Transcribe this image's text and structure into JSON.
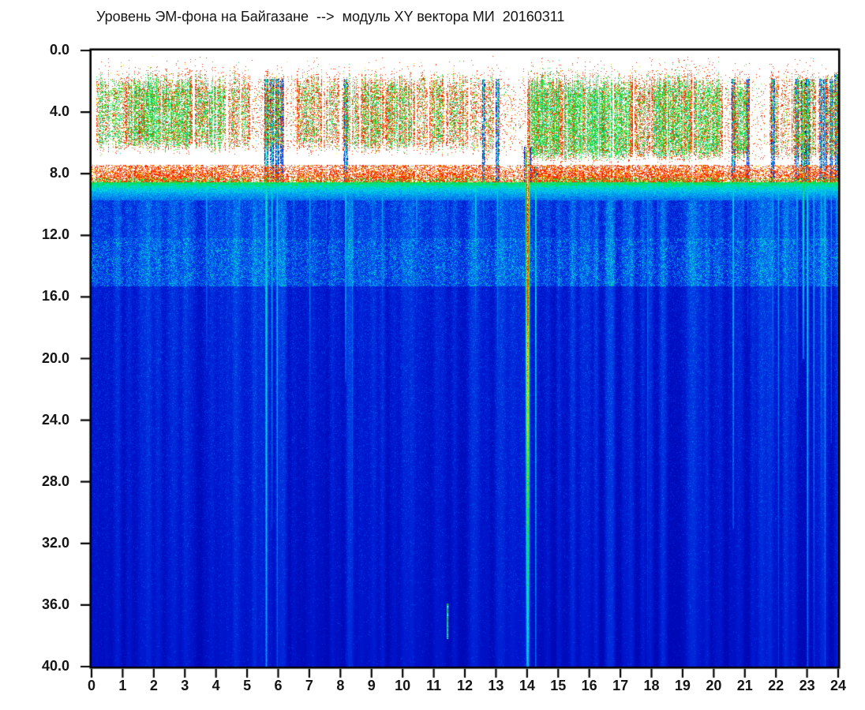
{
  "header": {
    "title": "Уровень ЭМ-фона на Байгазане  -->  модуль XY вектора МИ  20160311"
  },
  "chart_data": {
    "type": "heatmap",
    "subtype": "spectrogram",
    "title": "Уровень ЭМ-фона на Байгазане  -->  модуль XY вектора МИ  20160311",
    "date_shown_in_title": "20160311",
    "x_axis": {
      "min": 0,
      "max": 24,
      "tick_step": 1,
      "tick_labels": [
        "0",
        "1",
        "2",
        "3",
        "4",
        "5",
        "6",
        "7",
        "8",
        "9",
        "10",
        "11",
        "12",
        "13",
        "14",
        "15",
        "16",
        "17",
        "18",
        "19",
        "20",
        "21",
        "22",
        "23",
        "24"
      ]
    },
    "y_axis": {
      "min": 0,
      "max": 40,
      "tick_step": 4,
      "inverted": true,
      "tick_labels": [
        "0.0",
        "4.0",
        "8.0",
        "12.0",
        "16.0",
        "20.0",
        "24.0",
        "28.0",
        "32.0",
        "36.0",
        "40.0"
      ]
    },
    "grid": false,
    "legend": "none",
    "colormap": {
      "name": "jet-like",
      "below_min_color": "#FFFFFF",
      "stops": [
        [
          0.0,
          "#FFFFFF"
        ],
        [
          0.1,
          "#FFFFFF"
        ],
        [
          0.17,
          "#0000A8"
        ],
        [
          0.26,
          "#0018D0"
        ],
        [
          0.34,
          "#0040E8"
        ],
        [
          0.46,
          "#00A0F0"
        ],
        [
          0.54,
          "#00E0E0"
        ],
        [
          0.63,
          "#00DC48"
        ],
        [
          0.71,
          "#8CE800"
        ],
        [
          0.78,
          "#FFE000"
        ],
        [
          0.85,
          "#FF4000"
        ],
        [
          0.92,
          "#F01800"
        ],
        [
          0.965,
          "#FF9C9C"
        ],
        [
          1.0,
          "#FFFFFF"
        ]
      ]
    },
    "regions": [
      {
        "name": "blank-top",
        "y": [
          0.0,
          1.1
        ],
        "value": 0.0,
        "note": "white, no signal"
      },
      {
        "name": "daytime-activity-patches",
        "y": [
          1.1,
          7.45
        ],
        "note": "intermittent green-core patches with red speckle fringe"
      },
      {
        "name": "red-boundary-band",
        "y": [
          7.45,
          8.55
        ],
        "note": "dense red/yellow speckle band across full width"
      },
      {
        "name": "green-cyan-transition",
        "y": [
          8.55,
          9.75
        ],
        "value_from": 0.63,
        "value_to": 0.4
      },
      {
        "name": "bright-blue-band",
        "y": [
          9.75,
          12.2
        ],
        "base_value": 0.315,
        "speckle": "cyan, moderate"
      },
      {
        "name": "cyan-speckle-band",
        "y": [
          12.2,
          15.3
        ],
        "base_value": 0.32,
        "speckle": "cyan, dense"
      },
      {
        "name": "deep-blue",
        "y": [
          15.3,
          40.0
        ],
        "base_value_from": 0.27,
        "base_value_to": 0.235,
        "speckle": "sparse, fading with depth"
      }
    ],
    "activity_patches": [
      [
        0.15,
        1.1,
        0.55,
        0.65
      ],
      [
        1.1,
        3.25,
        0.88,
        0.7
      ],
      [
        3.3,
        4.35,
        0.75,
        0.6
      ],
      [
        4.4,
        5.1,
        0.6,
        0.5
      ],
      [
        5.15,
        5.55,
        0.15,
        0.3
      ],
      [
        5.55,
        6.2,
        0.7,
        0.5
      ],
      [
        6.25,
        6.6,
        0.2,
        0.3
      ],
      [
        6.6,
        7.4,
        0.65,
        0.5
      ],
      [
        7.45,
        8.0,
        0.55,
        0.45
      ],
      [
        8.05,
        8.6,
        0.65,
        0.5
      ],
      [
        8.65,
        9.4,
        0.75,
        0.55
      ],
      [
        9.45,
        10.4,
        0.8,
        0.55
      ],
      [
        10.45,
        10.8,
        0.45,
        0.4
      ],
      [
        10.85,
        11.35,
        0.7,
        0.5
      ],
      [
        11.4,
        12.1,
        0.6,
        0.45
      ],
      [
        12.15,
        12.55,
        0.35,
        0.35
      ],
      [
        12.6,
        12.95,
        0.5,
        0.4
      ],
      [
        13.0,
        13.95,
        0.12,
        0.2
      ],
      [
        14.0,
        15.1,
        0.95,
        0.75
      ],
      [
        15.1,
        17.4,
        0.92,
        0.78
      ],
      [
        17.45,
        17.95,
        0.6,
        0.5
      ],
      [
        18.0,
        19.3,
        0.85,
        0.72
      ],
      [
        19.35,
        20.3,
        0.82,
        0.7
      ],
      [
        20.35,
        20.55,
        0.2,
        0.3
      ],
      [
        20.6,
        21.15,
        0.8,
        0.65
      ],
      [
        21.2,
        21.75,
        0.1,
        0.2
      ],
      [
        21.8,
        22.1,
        0.65,
        0.55
      ],
      [
        22.15,
        22.45,
        0.3,
        0.3
      ],
      [
        22.5,
        23.3,
        0.7,
        0.55
      ],
      [
        23.35,
        23.55,
        0.25,
        0.3
      ],
      [
        23.6,
        24.0,
        0.7,
        0.55
      ]
    ],
    "streaks": [
      [
        3.7,
        8.6,
        20.5,
        0.5,
        0.055,
        0.4
      ],
      [
        4.35,
        8.6,
        15,
        0.45,
        0.045,
        0.4
      ],
      [
        4.75,
        8.6,
        17.5,
        0.47,
        0.05,
        0.4
      ],
      [
        5.62,
        1.8,
        40,
        0.7,
        0.05,
        0.35
      ],
      [
        5.8,
        1.8,
        31,
        0.6,
        0.045,
        0.45
      ],
      [
        5.97,
        1.8,
        40,
        0.58,
        0.05,
        0.4
      ],
      [
        6.12,
        1.8,
        24,
        0.52,
        0.04,
        0.45
      ],
      [
        6.5,
        8.6,
        15.5,
        0.45,
        0.04,
        0.4
      ],
      [
        7.02,
        8.6,
        27.5,
        0.48,
        0.05,
        0.45
      ],
      [
        7.55,
        8.6,
        14.5,
        0.45,
        0.04,
        0.4
      ],
      [
        8.17,
        1.8,
        21.5,
        0.64,
        0.05,
        0.42
      ],
      [
        8.38,
        8.6,
        40,
        0.46,
        0.04,
        0.42
      ],
      [
        9.05,
        8.6,
        14.5,
        0.45,
        0.045,
        0.4
      ],
      [
        9.35,
        8.6,
        18.5,
        0.5,
        0.04,
        0.42
      ],
      [
        10.45,
        8.6,
        17.5,
        0.5,
        0.05,
        0.42
      ],
      [
        10.95,
        8.6,
        13.5,
        0.44,
        0.04,
        0.4
      ],
      [
        11.45,
        8.6,
        15,
        0.43,
        0.04,
        0.4
      ],
      [
        11.45,
        35.9,
        38.2,
        0.97,
        0.03,
        0.12
      ],
      [
        12.35,
        8.6,
        19.5,
        0.55,
        0.05,
        0.45
      ],
      [
        12.6,
        1.8,
        15,
        0.55,
        0.04,
        0.4
      ],
      [
        13.05,
        1.8,
        19.5,
        0.62,
        0.045,
        0.45
      ],
      [
        13.35,
        8.6,
        13.5,
        0.45,
        0.04,
        0.4
      ],
      [
        14.02,
        6.2,
        40,
        1.04,
        0.085,
        0.52
      ],
      [
        14.28,
        7.5,
        40,
        0.62,
        0.035,
        0.35
      ],
      [
        15.35,
        8.6,
        12.5,
        0.42,
        0.04,
        0.4
      ],
      [
        16.15,
        8.6,
        12.5,
        0.42,
        0.04,
        0.4
      ],
      [
        17.5,
        8.6,
        13,
        0.42,
        0.04,
        0.4
      ],
      [
        17.88,
        8.6,
        40,
        0.44,
        0.05,
        0.4
      ],
      [
        18.2,
        8.6,
        14.5,
        0.45,
        0.04,
        0.4
      ],
      [
        19.05,
        8.6,
        12.5,
        0.42,
        0.04,
        0.4
      ],
      [
        20.63,
        1.8,
        31,
        0.62,
        0.05,
        0.42
      ],
      [
        20.95,
        8.6,
        16.5,
        0.46,
        0.04,
        0.4
      ],
      [
        21.1,
        1.8,
        18.5,
        0.52,
        0.04,
        0.42
      ],
      [
        21.9,
        1.8,
        26.5,
        0.56,
        0.05,
        0.45
      ],
      [
        22.08,
        8.6,
        40,
        0.5,
        0.04,
        0.4
      ],
      [
        22.38,
        8.6,
        20.5,
        0.46,
        0.04,
        0.4
      ],
      [
        22.68,
        1.8,
        22.5,
        0.6,
        0.05,
        0.45
      ],
      [
        22.88,
        1.8,
        20,
        0.82,
        0.05,
        0.5
      ],
      [
        23.02,
        1.8,
        40,
        0.64,
        0.05,
        0.42
      ],
      [
        23.22,
        8.6,
        40,
        0.52,
        0.04,
        0.4
      ],
      [
        23.45,
        1.8,
        30.5,
        0.56,
        0.04,
        0.42
      ],
      [
        23.58,
        1.8,
        40,
        0.6,
        0.045,
        0.42
      ],
      [
        23.78,
        1.8,
        25.5,
        0.56,
        0.04,
        0.42
      ],
      [
        23.95,
        1.5,
        12.5,
        0.72,
        0.05,
        0.45
      ]
    ],
    "noise_seed": 7
  },
  "colors": {
    "axis": "#000000",
    "text": "#151515",
    "background": "#FFFFFF"
  }
}
